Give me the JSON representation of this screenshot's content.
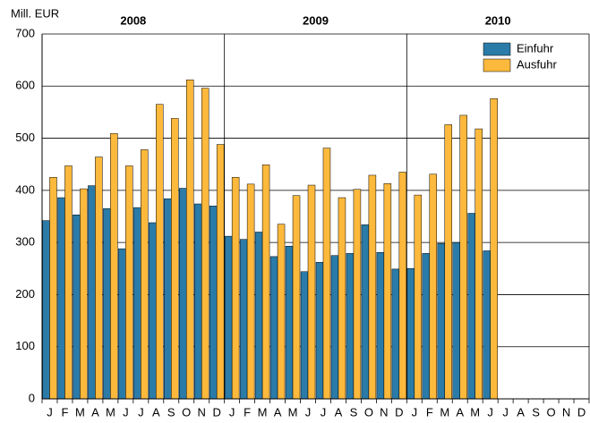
{
  "chart_data": {
    "type": "bar",
    "y_axis_label": "Mill. EUR",
    "years": [
      "2008",
      "2009",
      "2010"
    ],
    "categories": [
      "J",
      "F",
      "M",
      "A",
      "M",
      "J",
      "J",
      "A",
      "S",
      "O",
      "N",
      "D",
      "J",
      "F",
      "M",
      "A",
      "M",
      "J",
      "J",
      "A",
      "S",
      "O",
      "N",
      "D",
      "J",
      "F",
      "M",
      "A",
      "M",
      "J",
      "J",
      "A",
      "S",
      "O",
      "N",
      "D"
    ],
    "series": [
      {
        "name": "Einfuhr",
        "color": "#2a7ba8",
        "values": [
          342,
          386,
          353,
          409,
          365,
          288,
          367,
          338,
          384,
          404,
          374,
          370,
          312,
          306,
          320,
          273,
          293,
          244,
          262,
          275,
          279,
          334,
          281,
          249,
          250,
          279,
          298,
          300,
          356,
          284,
          null,
          null,
          null,
          null,
          null,
          null
        ]
      },
      {
        "name": "Ausfuhr",
        "color": "#fdb93c",
        "values": [
          425,
          447,
          403,
          464,
          509,
          447,
          478,
          565,
          538,
          612,
          596,
          488,
          425,
          412,
          449,
          335,
          390,
          410,
          481,
          386,
          402,
          429,
          413,
          435,
          391,
          431,
          526,
          544,
          518,
          576,
          null,
          null,
          null,
          null,
          null,
          null
        ]
      }
    ],
    "ylim": [
      0,
      700
    ],
    "yticks": [
      0,
      100,
      200,
      300,
      400,
      500,
      600,
      700
    ],
    "grid": true,
    "legend": "upper right"
  }
}
